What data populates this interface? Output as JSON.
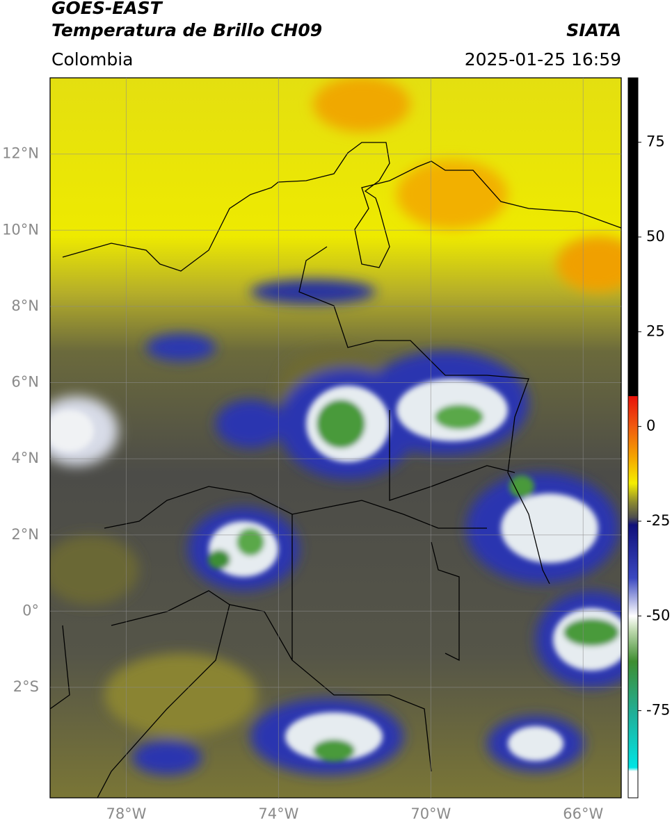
{
  "header": {
    "product": "GOES-EAST",
    "channel": "Temperatura de Brillo CH09",
    "source": "SIATA",
    "region": "Colombia",
    "timestamp": "2025-01-25 16:59"
  },
  "map": {
    "lonlim": [
      -80,
      -65
    ],
    "latlim": [
      -4.9,
      14
    ],
    "lat_ticks": [
      {
        "value": 12,
        "label": "12°N"
      },
      {
        "value": 10,
        "label": "10°N"
      },
      {
        "value": 8,
        "label": "8°N"
      },
      {
        "value": 6,
        "label": "6°N"
      },
      {
        "value": 4,
        "label": "4°N"
      },
      {
        "value": 2,
        "label": "2°N"
      },
      {
        "value": 0,
        "label": "0°"
      },
      {
        "value": -2,
        "label": "2°S"
      }
    ],
    "lon_ticks": [
      {
        "value": -78,
        "label": "78°W"
      },
      {
        "value": -74,
        "label": "74°W"
      },
      {
        "value": -70,
        "label": "70°W"
      },
      {
        "value": -66,
        "label": "66°W"
      }
    ],
    "grid": true
  },
  "colorbar": {
    "lim": [
      -98,
      92
    ],
    "ticks": [
      75,
      50,
      25,
      0,
      -25,
      -50,
      -75
    ],
    "stops": [
      {
        "value": 92,
        "color": "#000000"
      },
      {
        "value": 8,
        "color": "#000000"
      },
      {
        "value": 8,
        "color": "#e8120a"
      },
      {
        "value": 0,
        "color": "#f05a10"
      },
      {
        "value": -8,
        "color": "#f5a400"
      },
      {
        "value": -15,
        "color": "#f5ee00"
      },
      {
        "value": -20,
        "color": "#8c8a30"
      },
      {
        "value": -24,
        "color": "#4e4e4e"
      },
      {
        "value": -26,
        "color": "#10107a"
      },
      {
        "value": -40,
        "color": "#3a48c0"
      },
      {
        "value": -50,
        "color": "#ffffff"
      },
      {
        "value": -54,
        "color": "#bcd8ac"
      },
      {
        "value": -62,
        "color": "#3e8e30"
      },
      {
        "value": -76,
        "color": "#20b09a"
      },
      {
        "value": -90,
        "color": "#00e4e4"
      },
      {
        "value": -91,
        "color": "#ffffff"
      },
      {
        "value": -98,
        "color": "#ffffff"
      }
    ]
  }
}
